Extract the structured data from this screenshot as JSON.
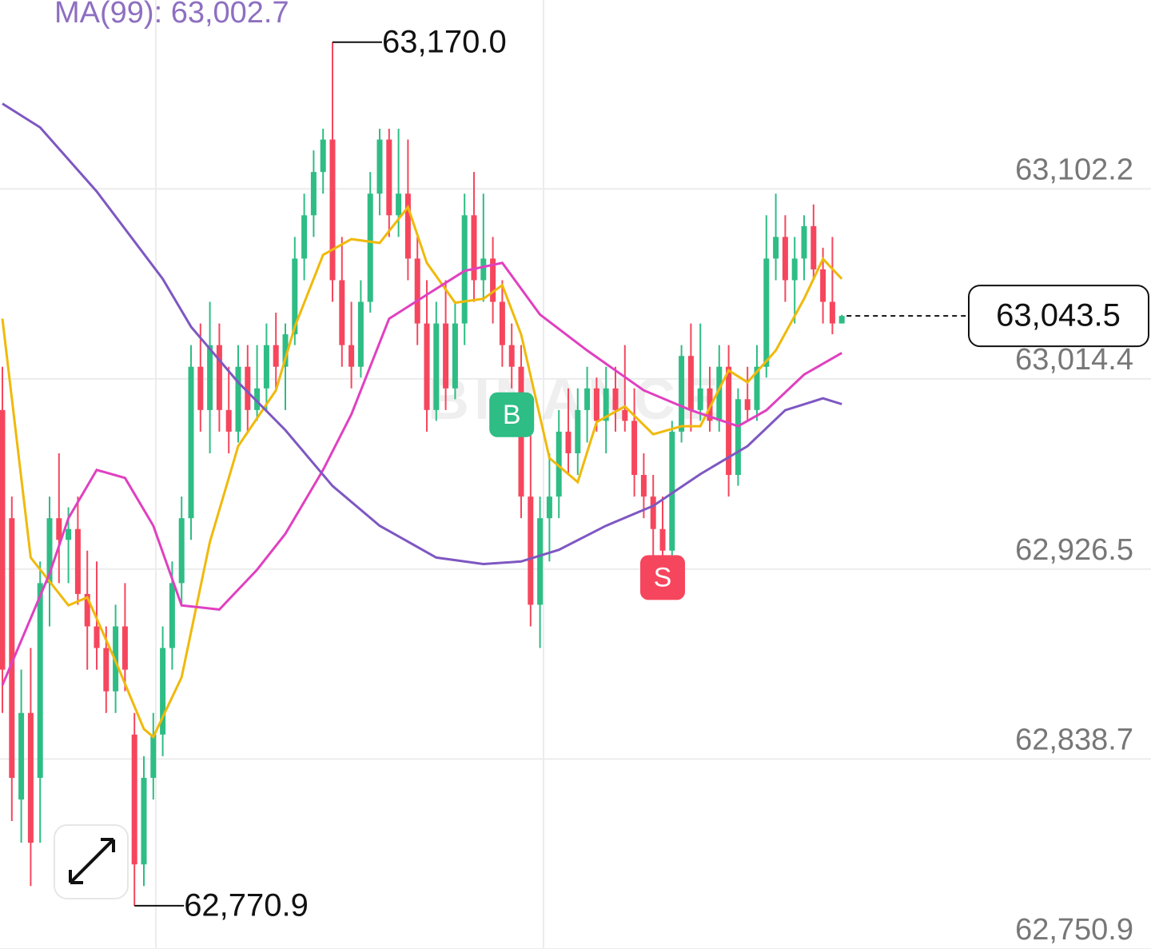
{
  "chart_data": {
    "type": "candlestick",
    "title": "MA(99): 63,002.7",
    "watermark": "BINANCE",
    "ylim": [
      62750.9,
      63189.5
    ],
    "yticks": [
      {
        "value": 63102.2,
        "label": "63,102.2"
      },
      {
        "value": 63014.4,
        "label": "63,014.4"
      },
      {
        "value": 62926.5,
        "label": "62,926.5"
      },
      {
        "value": 62838.7,
        "label": "62,838.7"
      },
      {
        "value": 62750.9,
        "label": "62,750.9"
      }
    ],
    "grid": true,
    "up_color": "#2ebd85",
    "down_color": "#f6465d",
    "candles": [
      {
        "open": 63000,
        "high": 63020,
        "low": 62860,
        "close": 62880
      },
      {
        "open": 62950,
        "high": 62960,
        "low": 62810,
        "close": 62830
      },
      {
        "open": 62820,
        "high": 62880,
        "low": 62800,
        "close": 62860
      },
      {
        "open": 62860,
        "high": 62890,
        "low": 62780,
        "close": 62800
      },
      {
        "open": 62830,
        "high": 62930,
        "low": 62800,
        "close": 62920
      },
      {
        "open": 62920,
        "high": 62960,
        "low": 62900,
        "close": 62950
      },
      {
        "open": 62950,
        "high": 62980,
        "low": 62920,
        "close": 62940
      },
      {
        "open": 62940,
        "high": 62955,
        "low": 62920,
        "close": 62945
      },
      {
        "open": 62945,
        "high": 62960,
        "low": 62910,
        "close": 62915
      },
      {
        "open": 62915,
        "high": 62935,
        "low": 62880,
        "close": 62900
      },
      {
        "open": 62900,
        "high": 62930,
        "low": 62880,
        "close": 62890
      },
      {
        "open": 62890,
        "high": 62900,
        "low": 62860,
        "close": 62870
      },
      {
        "open": 62870,
        "high": 62910,
        "low": 62860,
        "close": 62900
      },
      {
        "open": 62900,
        "high": 62920,
        "low": 62870,
        "close": 62880
      },
      {
        "open": 62850,
        "high": 62860,
        "low": 62770.9,
        "close": 62790
      },
      {
        "open": 62790,
        "high": 62840,
        "low": 62780,
        "close": 62830
      },
      {
        "open": 62830,
        "high": 62860,
        "low": 62820,
        "close": 62850
      },
      {
        "open": 62850,
        "high": 62900,
        "low": 62840,
        "close": 62890
      },
      {
        "open": 62890,
        "high": 62930,
        "low": 62880,
        "close": 62920
      },
      {
        "open": 62920,
        "high": 62960,
        "low": 62910,
        "close": 62950
      },
      {
        "open": 62950,
        "high": 63030,
        "low": 62940,
        "close": 63020
      },
      {
        "open": 63020,
        "high": 63040,
        "low": 62990,
        "close": 63000
      },
      {
        "open": 63000,
        "high": 63050,
        "low": 62980,
        "close": 63030
      },
      {
        "open": 63030,
        "high": 63040,
        "low": 62990,
        "close": 63000
      },
      {
        "open": 63000,
        "high": 63020,
        "low": 62980,
        "close": 62990
      },
      {
        "open": 62990,
        "high": 63030,
        "low": 62985,
        "close": 63020
      },
      {
        "open": 63020,
        "high": 63030,
        "low": 62990,
        "close": 63000
      },
      {
        "open": 63000,
        "high": 63030,
        "low": 62995,
        "close": 63010
      },
      {
        "open": 63010,
        "high": 63040,
        "low": 63000,
        "close": 63030
      },
      {
        "open": 63030,
        "high": 63045,
        "low": 63010,
        "close": 63020
      },
      {
        "open": 63020,
        "high": 63040,
        "low": 63000,
        "close": 63035
      },
      {
        "open": 63035,
        "high": 63080,
        "low": 63030,
        "close": 63070
      },
      {
        "open": 63070,
        "high": 63100,
        "low": 63060,
        "close": 63090
      },
      {
        "open": 63090,
        "high": 63120,
        "low": 63080,
        "close": 63110
      },
      {
        "open": 63110,
        "high": 63130,
        "low": 63100,
        "close": 63125
      },
      {
        "open": 63125,
        "high": 63170,
        "low": 63050,
        "close": 63060
      },
      {
        "open": 63060,
        "high": 63080,
        "low": 63020,
        "close": 63030
      },
      {
        "open": 63030,
        "high": 63050,
        "low": 63010,
        "close": 63020
      },
      {
        "open": 63020,
        "high": 63060,
        "low": 63015,
        "close": 63050
      },
      {
        "open": 63050,
        "high": 63110,
        "low": 63045,
        "close": 63100
      },
      {
        "open": 63100,
        "high": 63130,
        "low": 63090,
        "close": 63125
      },
      {
        "open": 63125,
        "high": 63130,
        "low": 63080,
        "close": 63090
      },
      {
        "open": 63090,
        "high": 63130,
        "low": 63080,
        "close": 63100
      },
      {
        "open": 63100,
        "high": 63125,
        "low": 63060,
        "close": 63070
      },
      {
        "open": 63070,
        "high": 63080,
        "low": 63030,
        "close": 63040
      },
      {
        "open": 63040,
        "high": 63060,
        "low": 62990,
        "close": 63000
      },
      {
        "open": 63000,
        "high": 63050,
        "low": 62995,
        "close": 63040
      },
      {
        "open": 63040,
        "high": 63060,
        "low": 63000,
        "close": 63010
      },
      {
        "open": 63010,
        "high": 63050,
        "low": 63005,
        "close": 63040
      },
      {
        "open": 63040,
        "high": 63100,
        "low": 63030,
        "close": 63090
      },
      {
        "open": 63090,
        "high": 63110,
        "low": 63050,
        "close": 63060
      },
      {
        "open": 63060,
        "high": 63100,
        "low": 63050,
        "close": 63070
      },
      {
        "open": 63070,
        "high": 63080,
        "low": 63040,
        "close": 63050
      },
      {
        "open": 63050,
        "high": 63060,
        "low": 63020,
        "close": 63030
      },
      {
        "open": 63030,
        "high": 63040,
        "low": 63010,
        "close": 63020
      },
      {
        "open": 63020,
        "high": 63030,
        "low": 62950,
        "close": 62960
      },
      {
        "open": 62960,
        "high": 62990,
        "low": 62900,
        "close": 62910
      },
      {
        "open": 62910,
        "high": 62960,
        "low": 62890,
        "close": 62950
      },
      {
        "open": 62950,
        "high": 62980,
        "low": 62930,
        "close": 62960
      },
      {
        "open": 62960,
        "high": 63000,
        "low": 62950,
        "close": 62990
      },
      {
        "open": 62990,
        "high": 63010,
        "low": 62970,
        "close": 62980
      },
      {
        "open": 62980,
        "high": 63010,
        "low": 62970,
        "close": 63000
      },
      {
        "open": 63000,
        "high": 63020,
        "low": 62985,
        "close": 63010
      },
      {
        "open": 63010,
        "high": 63015,
        "low": 62990,
        "close": 62995
      },
      {
        "open": 62995,
        "high": 63020,
        "low": 62980,
        "close": 63010
      },
      {
        "open": 63010,
        "high": 63020,
        "low": 62990,
        "close": 63000
      },
      {
        "open": 63000,
        "high": 63030,
        "low": 62990,
        "close": 62995
      },
      {
        "open": 62995,
        "high": 63010,
        "low": 62960,
        "close": 62970
      },
      {
        "open": 62970,
        "high": 62980,
        "low": 62950,
        "close": 62960
      },
      {
        "open": 62960,
        "high": 62970,
        "low": 62930,
        "close": 62945
      },
      {
        "open": 62945,
        "high": 62960,
        "low": 62920,
        "close": 62935
      },
      {
        "open": 62935,
        "high": 62995,
        "low": 62925,
        "close": 62990
      },
      {
        "open": 62990,
        "high": 63030,
        "low": 62985,
        "close": 63025
      },
      {
        "open": 63025,
        "high": 63040,
        "low": 62990,
        "close": 63000
      },
      {
        "open": 63000,
        "high": 63040,
        "low": 62995,
        "close": 63010
      },
      {
        "open": 63010,
        "high": 63020,
        "low": 62990,
        "close": 62995
      },
      {
        "open": 62995,
        "high": 63030,
        "low": 62990,
        "close": 63020
      },
      {
        "open": 63020,
        "high": 63030,
        "low": 62960,
        "close": 62970
      },
      {
        "open": 62970,
        "high": 63010,
        "low": 62965,
        "close": 63005
      },
      {
        "open": 63005,
        "high": 63020,
        "low": 62995,
        "close": 63000
      },
      {
        "open": 63000,
        "high": 63030,
        "low": 62995,
        "close": 63020
      },
      {
        "open": 63020,
        "high": 63090,
        "low": 63015,
        "close": 63070
      },
      {
        "open": 63070,
        "high": 63100,
        "low": 63060,
        "close": 63080
      },
      {
        "open": 63080,
        "high": 63090,
        "low": 63050,
        "close": 63060
      },
      {
        "open": 63060,
        "high": 63080,
        "low": 63040,
        "close": 63070
      },
      {
        "open": 63070,
        "high": 63090,
        "low": 63060,
        "close": 63085
      },
      {
        "open": 63085,
        "high": 63095,
        "low": 63060,
        "close": 63065
      },
      {
        "open": 63065,
        "high": 63075,
        "low": 63040,
        "close": 63050
      },
      {
        "open": 63050,
        "high": 63080,
        "low": 63035,
        "close": 63040
      },
      {
        "open": 63040,
        "high": 63044,
        "low": 63040,
        "close": 63043.5
      }
    ],
    "series": [
      {
        "color": "#f0b90b",
        "x": [
          0,
          3,
          7,
          9,
          12,
          15,
          16,
          19,
          22,
          25,
          29,
          31,
          34,
          37,
          40,
          43,
          45,
          48,
          51,
          53,
          55,
          58,
          61,
          63,
          66,
          69,
          72,
          74,
          77,
          79,
          82,
          85,
          87,
          89
        ],
        "values": [
          63042.2,
          62931.8,
          62909.7,
          62913.4,
          62883.9,
          62852.6,
          62848.9,
          62876.5,
          62939.1,
          62983.3,
          63009.1,
          63038.5,
          63071.7,
          63079.0,
          63077.2,
          63093.8,
          63068.0,
          63049.6,
          63051.4,
          63057.7,
          63034.9,
          62977.8,
          62966.7,
          62994.4,
          63001.7,
          62988.8,
          62992.5,
          62992.5,
          63018.3,
          63012.8,
          63027.5,
          63051.4,
          63069.8,
          63060.6
        ]
      },
      {
        "color": "#e040c0",
        "x": [
          0,
          5,
          7,
          10,
          13,
          16,
          19,
          23,
          27,
          30,
          34,
          37,
          41,
          45,
          49,
          53,
          57,
          62,
          68,
          73,
          78,
          81,
          85,
          89
        ],
        "values": [
          62872.8,
          62924.4,
          62950.0,
          62972.3,
          62968.6,
          62946.5,
          62909.7,
          62907.8,
          62926.2,
          62942.8,
          62972.3,
          62998.0,
          63042.2,
          63053.3,
          63064.3,
          63068.0,
          63044.1,
          63027.5,
          63009.1,
          62999.9,
          62992.5,
          62999.9,
          63016.4,
          63026.4
        ]
      },
      {
        "color": "#7e57c2",
        "x": [
          0,
          4,
          10,
          17,
          20,
          25,
          30,
          35,
          40,
          46,
          51,
          55,
          59,
          64,
          69,
          74,
          79,
          83,
          87,
          89
        ],
        "values": [
          63141.6,
          63130.6,
          63101.0,
          63060.6,
          63038.5,
          63012.8,
          62990.7,
          62964.9,
          62946.5,
          62931.8,
          62928.8,
          62930.0,
          62935.4,
          62946.5,
          62955.7,
          62970.4,
          62983.3,
          62999.9,
          63005.4,
          63002.7
        ]
      }
    ],
    "annotations": [
      {
        "index": 35,
        "value": 63170,
        "label": "63,170.0"
      },
      {
        "index": 14,
        "value": 62770.9,
        "label": "62,770.9"
      }
    ],
    "markers": [
      {
        "index": 54,
        "label": "B",
        "color": "#2ebd85"
      },
      {
        "index": 70,
        "label": "S",
        "color": "#f6465d"
      }
    ],
    "last_price": {
      "value": 63043.5,
      "label": "63,043.5"
    }
  }
}
